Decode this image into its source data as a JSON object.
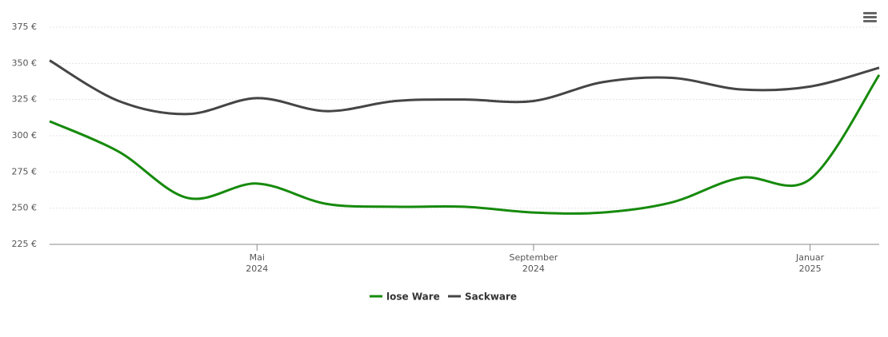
{
  "chart_data": {
    "type": "line",
    "x": [
      "2024-02",
      "2024-03",
      "2024-04",
      "2024-05",
      "2024-06",
      "2024-07",
      "2024-08",
      "2024-09",
      "2024-10",
      "2024-11",
      "2024-12",
      "2025-01",
      "2025-02"
    ],
    "xlim": [
      "2024-02",
      "2025-02"
    ],
    "xticks": [
      {
        "value": "2024-05",
        "label": [
          "Mai",
          "2024"
        ]
      },
      {
        "value": "2024-09",
        "label": [
          "September",
          "2024"
        ]
      },
      {
        "value": "2025-01",
        "label": [
          "Januar",
          "2025"
        ]
      }
    ],
    "ylim": [
      225,
      375
    ],
    "yticks": [
      {
        "value": 225,
        "label": "225 €"
      },
      {
        "value": 250,
        "label": "250 €"
      },
      {
        "value": 275,
        "label": "275 €"
      },
      {
        "value": 300,
        "label": "300 €"
      },
      {
        "value": 325,
        "label": "325 €"
      },
      {
        "value": 350,
        "label": "350 €"
      },
      {
        "value": 375,
        "label": "375 €"
      }
    ],
    "grid": true,
    "legend": "bottom",
    "series": [
      {
        "name": "lose Ware",
        "color": "#168a0c",
        "values": [
          310,
          289,
          257,
          267,
          253,
          251,
          251,
          247,
          247,
          254,
          271,
          270,
          342
        ]
      },
      {
        "name": "Sackware",
        "color": "#454545",
        "values": [
          352,
          324,
          315,
          326,
          317,
          324,
          325,
          324,
          337,
          340,
          332,
          334,
          347
        ]
      }
    ]
  }
}
